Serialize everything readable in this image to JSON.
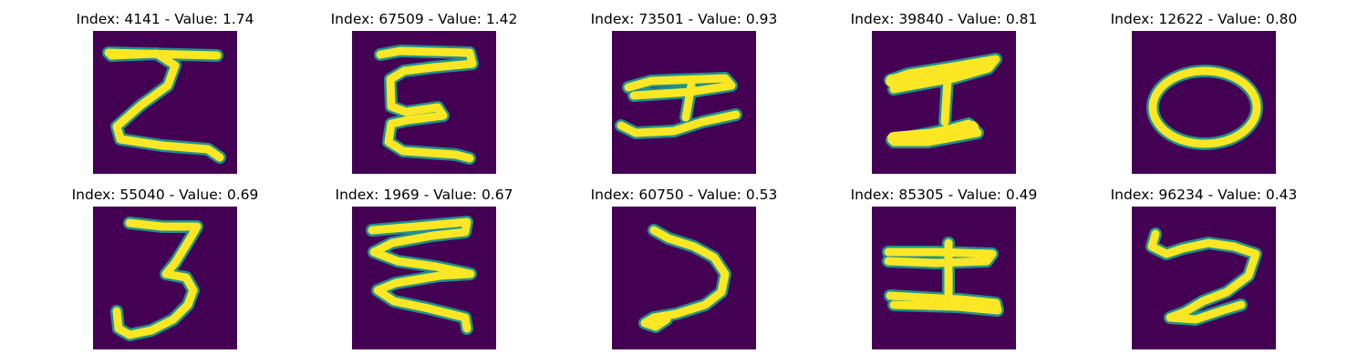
{
  "panels": [
    {
      "title": "Index: 4141 - Value: 1.74",
      "glyph_icon": "sigma-like-letter-icon"
    },
    {
      "title": "Index: 67509 - Value: 1.42",
      "glyph_icon": "e-like-letter-icon"
    },
    {
      "title": "Index: 73501 - Value: 0.93",
      "glyph_icon": "i-beam-letter-icon"
    },
    {
      "title": "Index: 39840 - Value: 0.81",
      "glyph_icon": "i-beam-letter-icon"
    },
    {
      "title": "Index: 12622 - Value: 0.80",
      "glyph_icon": "o-letter-icon"
    },
    {
      "title": "Index: 55040 - Value: 0.69",
      "glyph_icon": "three-like-letter-icon"
    },
    {
      "title": "Index: 1969 - Value: 0.67",
      "glyph_icon": "e-like-letter-icon"
    },
    {
      "title": "Index: 60750 - Value: 0.53",
      "glyph_icon": "open-curve-letter-icon"
    },
    {
      "title": "Index: 85305 - Value: 0.49",
      "glyph_icon": "i-beam-letter-icon"
    },
    {
      "title": "Index: 96234 - Value: 0.43",
      "glyph_icon": "squiggle-letter-icon"
    }
  ],
  "colors": {
    "background": "#440154",
    "edge": "#21918c",
    "stroke": "#fde725"
  }
}
